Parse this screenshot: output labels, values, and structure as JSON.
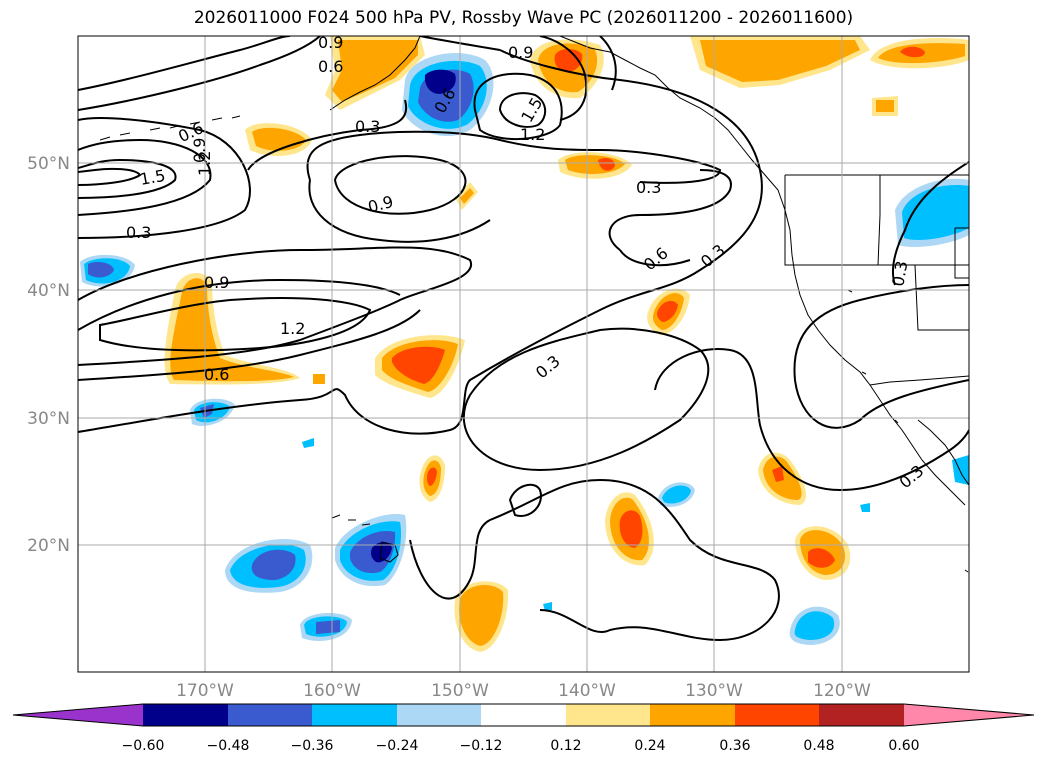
{
  "title": "2026011000 F024 500 hPa PV, Rossby Wave PC (2026011200 - 2026011600)",
  "map": {
    "lat_labels": [
      "50°N",
      "40°N",
      "30°N",
      "20°N"
    ],
    "lon_labels": [
      "170°W",
      "160°W",
      "150°W",
      "140°W",
      "130°W",
      "120°W"
    ],
    "gridlines": true
  },
  "contour_labels": [
    "0.9",
    "0.6",
    "0.9",
    "0.3",
    "0.6",
    "1.5",
    "1.2",
    "0.6",
    "0.9",
    "1.2",
    "1.5",
    "0.3",
    "0.9",
    "0.3",
    "0.9",
    "1.2",
    "0.6",
    "0.3",
    "0.6",
    "0.3",
    "0.3",
    "0.3"
  ],
  "colorbar": {
    "colors": [
      "#9933cc",
      "#00008b",
      "#3a5bd0",
      "#00bfff",
      "#add8f5",
      "#ffffff",
      "#ffe68c",
      "#ffa500",
      "#ff4500",
      "#b22222",
      "#ff88aa"
    ],
    "tick_labels": [
      "−0.60",
      "−0.48",
      "−0.36",
      "−0.24",
      "−0.12",
      "0.12",
      "0.24",
      "0.36",
      "0.48",
      "0.60"
    ]
  }
}
